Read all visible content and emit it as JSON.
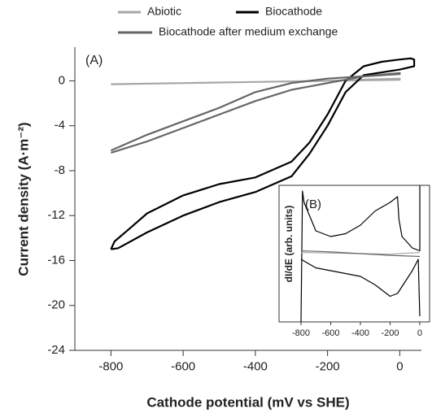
{
  "chart_data": [
    {
      "type": "line",
      "xlabel": "Cathode potential (mV vs SHE)",
      "ylabel": "Current density (A·m⁻²)",
      "annotation": "(A)",
      "xlim": [
        -900,
        60
      ],
      "xticks": [
        -800,
        -600,
        -400,
        -200,
        0
      ],
      "ylim": [
        -24,
        3
      ],
      "yticks": [
        0,
        -4,
        -8,
        -12,
        -16,
        -20,
        -24
      ],
      "grid": false,
      "series": [
        {
          "name": "Abiotic",
          "color": "#a6a6a6",
          "x": [
            -800,
            -600,
            -400,
            -200,
            0,
            0,
            -200,
            -400,
            -600,
            -800
          ],
          "values": [
            -0.3,
            -0.2,
            -0.1,
            0,
            0.2,
            0.1,
            0,
            -0.1,
            -0.2,
            -0.3
          ]
        },
        {
          "name": "Biocathode",
          "color": "#000000",
          "x": [
            -800,
            -790,
            -750,
            -700,
            -600,
            -500,
            -400,
            -300,
            -250,
            -200,
            -150,
            -100,
            -50,
            0,
            30,
            40,
            40,
            0,
            -100,
            -150,
            -200,
            -250,
            -300,
            -400,
            -500,
            -600,
            -700,
            -780,
            -800
          ],
          "values": [
            -15,
            -14.3,
            -13.2,
            -11.8,
            -10.2,
            -9.2,
            -8.6,
            -7.2,
            -5.5,
            -3,
            0,
            1.3,
            1.7,
            1.9,
            2,
            1.9,
            1.3,
            1.0,
            0.5,
            -1,
            -4,
            -6.5,
            -8.5,
            -9.9,
            -10.8,
            -12,
            -13.5,
            -14.9,
            -15
          ]
        },
        {
          "name": "Biocathode after medium exchange",
          "color": "#666666",
          "x": [
            -800,
            -700,
            -600,
            -500,
            -400,
            -300,
            -200,
            -100,
            0,
            0,
            -100,
            -200,
            -300,
            -400,
            -500,
            -600,
            -700,
            -800
          ],
          "values": [
            -6.2,
            -4.8,
            -3.6,
            -2.4,
            -1,
            -0.2,
            0.2,
            0.4,
            0.6,
            0.7,
            0.4,
            -0.2,
            -0.8,
            -1.8,
            -3,
            -4.2,
            -5.4,
            -6.4
          ]
        }
      ]
    },
    {
      "type": "line",
      "ylabel": "dI/dE (arb. units)",
      "annotation": "(B)",
      "xlim": [
        -948,
        66
      ],
      "xticks": [
        -800,
        -600,
        -400,
        -200,
        0
      ],
      "ylim": [
        -1.2,
        1.2
      ],
      "series": [
        {
          "color": "#000000",
          "x": [
            -800,
            -790,
            -780,
            -700,
            -600,
            -500,
            -400,
            -300,
            -200,
            -150,
            -140,
            -120,
            -50,
            0,
            0
          ],
          "values": [
            -1.2,
            1.1,
            0.9,
            0.4,
            0.3,
            0.35,
            0.5,
            0.75,
            0.9,
            1.0,
            0.6,
            0.3,
            0.1,
            0.05,
            1.2
          ]
        },
        {
          "color": "#000000",
          "x": [
            -800,
            -700,
            -600,
            -500,
            -400,
            -300,
            -200,
            -150,
            -100,
            -50,
            -10,
            0
          ],
          "values": [
            -0.1,
            -0.25,
            -0.3,
            -0.35,
            -0.4,
            -0.55,
            -0.75,
            -0.7,
            -0.5,
            -0.3,
            -0.1,
            -1.1
          ]
        },
        {
          "color": "#a6a6a6",
          "x": [
            -800,
            -600,
            -400,
            -200,
            0
          ],
          "values": [
            0.02,
            0.01,
            0.0,
            -0.01,
            0.02
          ]
        },
        {
          "color": "#666666",
          "x": [
            -800,
            -600,
            -400,
            -200,
            0
          ],
          "values": [
            0.05,
            0.03,
            0.0,
            -0.03,
            -0.05
          ]
        }
      ]
    }
  ]
}
